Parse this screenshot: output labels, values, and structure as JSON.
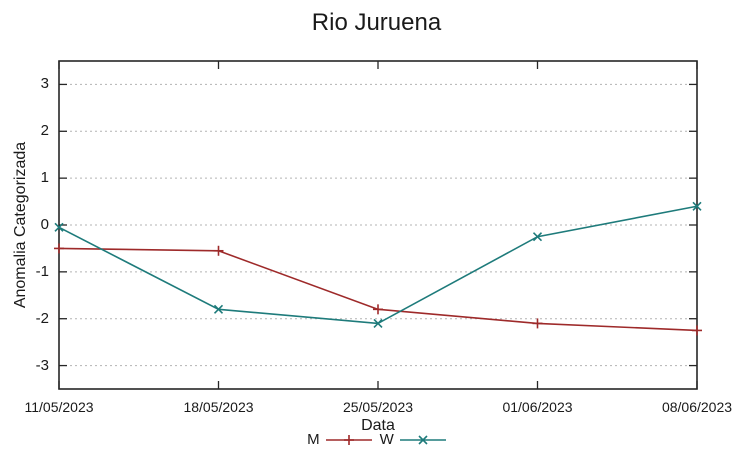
{
  "chart_data": {
    "type": "line",
    "title": "Rio Juruena",
    "xlabel": "Data",
    "ylabel": "Anomalia Categorizada",
    "categories": [
      "11/05/2023",
      "18/05/2023",
      "25/05/2023",
      "01/06/2023",
      "08/06/2023"
    ],
    "series": [
      {
        "name": "M",
        "marker": "plus",
        "color": "#9e2a2a",
        "values": [
          -0.5,
          -0.55,
          -1.8,
          -2.1,
          -2.25
        ]
      },
      {
        "name": "W",
        "marker": "cross",
        "color": "#1e7b7b",
        "values": [
          -0.05,
          -1.8,
          -2.1,
          -0.25,
          0.4
        ]
      }
    ],
    "ylim": [
      -3.5,
      3.5
    ],
    "yticks": [
      -3,
      -2,
      -1,
      0,
      1,
      2,
      3
    ],
    "grid": "horizontal-dashed",
    "legend_position": "bottom-center",
    "colors": {
      "frame": "#262626",
      "grid": "#b3b3b3",
      "text": "#1a1a1a",
      "background": "#ffffff"
    }
  }
}
